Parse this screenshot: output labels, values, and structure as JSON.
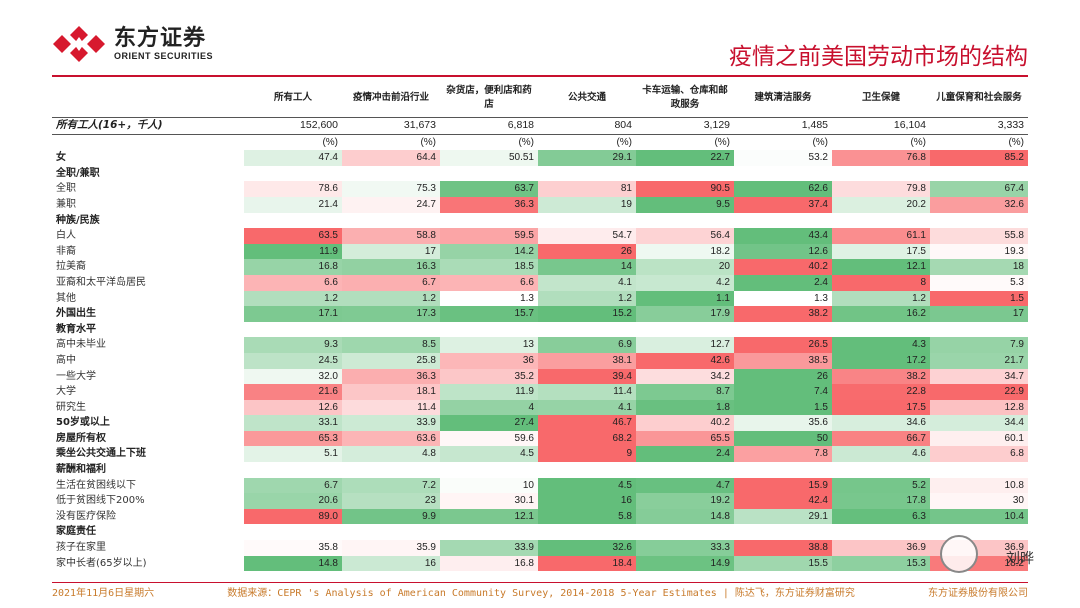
{
  "brand": {
    "name_cn": "东方证券",
    "name_en": "ORIENT SECURITIES"
  },
  "title": "疫情之前美国劳动市场的结构",
  "columns": [
    "所有工人",
    "疫情冲击前沿行业",
    "杂货店，便利店和药店",
    "公共交通",
    "卡车运输、仓库和邮政服务",
    "建筑清洁服务",
    "卫生保健",
    "儿童保育和社会服务"
  ],
  "rows": [
    {
      "label": "所有工人(16+，千人)",
      "indent": false,
      "values": [
        "152,600",
        "31,673",
        "6,818",
        "804",
        "3,129",
        "1,485",
        "16,104",
        "3,333"
      ]
    },
    {
      "label": "",
      "indent": false,
      "values": [
        "(%)",
        "(%)",
        "(%)",
        "(%)",
        "(%)",
        "(%)",
        "(%)",
        "(%)"
      ]
    },
    {
      "label": "女",
      "indent": false,
      "values": [
        "47.4",
        "64.4",
        "50.51",
        "29.1",
        "22.7",
        "53.2",
        "76.8",
        "85.2"
      ]
    },
    {
      "label": "全职/兼职",
      "indent": false,
      "values": [
        "",
        "",
        "",
        "",
        "",
        "",
        "",
        ""
      ]
    },
    {
      "label": "全职",
      "indent": true,
      "values": [
        "78.6",
        "75.3",
        "63.7",
        "81",
        "90.5",
        "62.6",
        "79.8",
        "67.4"
      ]
    },
    {
      "label": "兼职",
      "indent": true,
      "values": [
        "21.4",
        "24.7",
        "36.3",
        "19",
        "9.5",
        "37.4",
        "20.2",
        "32.6"
      ]
    },
    {
      "label": "种族/民族",
      "indent": false,
      "values": [
        "",
        "",
        "",
        "",
        "",
        "",
        "",
        ""
      ]
    },
    {
      "label": "白人",
      "indent": true,
      "values": [
        "63.5",
        "58.8",
        "59.5",
        "54.7",
        "56.4",
        "43.4",
        "61.1",
        "55.8"
      ]
    },
    {
      "label": "非裔",
      "indent": true,
      "values": [
        "11.9",
        "17",
        "14.2",
        "26",
        "18.2",
        "12.6",
        "17.5",
        "19.3"
      ]
    },
    {
      "label": "拉美裔",
      "indent": true,
      "values": [
        "16.8",
        "16.3",
        "18.5",
        "14",
        "20",
        "40.2",
        "12.1",
        "18"
      ]
    },
    {
      "label": "亚裔和太平洋岛居民",
      "indent": true,
      "values": [
        "6.6",
        "6.7",
        "6.6",
        "4.1",
        "4.2",
        "2.4",
        "8",
        "5.3"
      ]
    },
    {
      "label": "其他",
      "indent": true,
      "values": [
        "1.2",
        "1.2",
        "1.3",
        "1.2",
        "1.1",
        "1.3",
        "1.2",
        "1.5"
      ]
    },
    {
      "label": "外国出生",
      "indent": false,
      "values": [
        "17.1",
        "17.3",
        "15.7",
        "15.2",
        "17.9",
        "38.2",
        "16.2",
        "17"
      ]
    },
    {
      "label": "教育水平",
      "indent": false,
      "values": [
        "",
        "",
        "",
        "",
        "",
        "",
        "",
        ""
      ]
    },
    {
      "label": "高中未毕业",
      "indent": true,
      "values": [
        "9.3",
        "8.5",
        "13",
        "6.9",
        "12.7",
        "26.5",
        "4.3",
        "7.9"
      ]
    },
    {
      "label": "高中",
      "indent": true,
      "values": [
        "24.5",
        "25.8",
        "36",
        "38.1",
        "42.6",
        "38.5",
        "17.2",
        "21.7"
      ]
    },
    {
      "label": "一些大学",
      "indent": true,
      "values": [
        "32.0",
        "36.3",
        "35.2",
        "39.4",
        "34.2",
        "26",
        "38.2",
        "34.7"
      ]
    },
    {
      "label": "大学",
      "indent": true,
      "values": [
        "21.6",
        "18.1",
        "11.9",
        "11.4",
        "8.7",
        "7.4",
        "22.8",
        "22.9"
      ]
    },
    {
      "label": "研究生",
      "indent": true,
      "values": [
        "12.6",
        "11.4",
        "4",
        "4.1",
        "1.8",
        "1.5",
        "17.5",
        "12.8"
      ]
    },
    {
      "label": "50岁或以上",
      "indent": false,
      "values": [
        "33.1",
        "33.9",
        "27.4",
        "46.7",
        "40.2",
        "35.6",
        "34.6",
        "34.4"
      ]
    },
    {
      "label": "房屋所有权",
      "indent": false,
      "values": [
        "65.3",
        "63.6",
        "59.6",
        "68.2",
        "65.5",
        "50",
        "66.7",
        "60.1"
      ]
    },
    {
      "label": "乘坐公共交通上下班",
      "indent": false,
      "values": [
        "5.1",
        "4.8",
        "4.5",
        "9",
        "2.4",
        "7.8",
        "4.6",
        "6.8"
      ]
    },
    {
      "label": "薪酬和福利",
      "indent": false,
      "values": [
        "",
        "",
        "",
        "",
        "",
        "",
        "",
        ""
      ]
    },
    {
      "label": "生活在贫困线以下",
      "indent": true,
      "values": [
        "6.7",
        "7.2",
        "10",
        "4.5",
        "4.7",
        "15.9",
        "5.2",
        "10.8"
      ]
    },
    {
      "label": "低于贫困线下200%",
      "indent": true,
      "values": [
        "20.6",
        "23",
        "30.1",
        "16",
        "19.2",
        "42.4",
        "17.8",
        "30"
      ]
    },
    {
      "label": "没有医疗保险",
      "indent": true,
      "values": [
        "89.0",
        "9.9",
        "12.1",
        "5.8",
        "14.8",
        "29.1",
        "6.3",
        "10.4"
      ]
    },
    {
      "label": "家庭责任",
      "indent": false,
      "values": [
        "",
        "",
        "",
        "",
        "",
        "",
        "",
        ""
      ]
    },
    {
      "label": "孩子在家里",
      "indent": true,
      "values": [
        "35.8",
        "35.9",
        "33.9",
        "32.6",
        "33.3",
        "38.8",
        "36.9",
        "36.9"
      ]
    },
    {
      "label": "家中长者(65岁以上)",
      "indent": true,
      "values": [
        "14.8",
        "16",
        "16.8",
        "18.4",
        "14.9",
        "15.5",
        "15.3",
        "18.2"
      ]
    }
  ],
  "footer": {
    "date": "2021年11月6日星期六",
    "source": "数据来源：CEPR 's Analysis of American Community Survey, 2014-2018 5-Year Estimates | 陈达飞，东方证券财富研究",
    "company": "东方证券股份有限公司"
  },
  "watermark": "刘晔"
}
